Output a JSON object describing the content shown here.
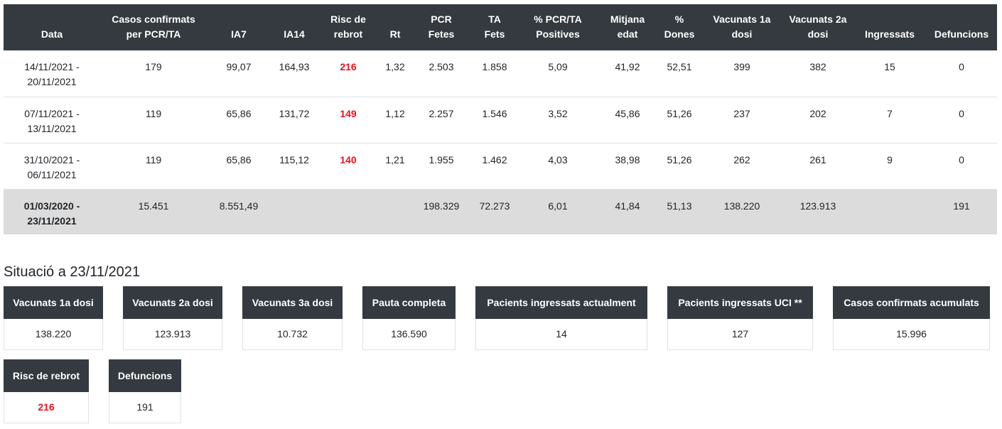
{
  "table": {
    "headers": [
      {
        "line1": "Data",
        "line2": ""
      },
      {
        "line1": "Casos confirmats",
        "line2": "per PCR/TA"
      },
      {
        "line1": "IA7",
        "line2": ""
      },
      {
        "line1": "IA14",
        "line2": ""
      },
      {
        "line1": "Risc de",
        "line2": "rebrot"
      },
      {
        "line1": "Rt",
        "line2": ""
      },
      {
        "line1": "PCR",
        "line2": "Fetes"
      },
      {
        "line1": "TA",
        "line2": "Fets"
      },
      {
        "line1": "% PCR/TA",
        "line2": "Positives"
      },
      {
        "line1": "Mitjana",
        "line2": "edat"
      },
      {
        "line1": "%",
        "line2": "Dones"
      },
      {
        "line1": "Vacunats 1a",
        "line2": "dosi"
      },
      {
        "line1": "Vacunats 2a",
        "line2": "dosi"
      },
      {
        "line1": "Ingressats",
        "line2": ""
      },
      {
        "line1": "Defuncions",
        "line2": ""
      }
    ],
    "rows": [
      {
        "date1": "14/11/2021 -",
        "date2": "20/11/2021",
        "cells": [
          "179",
          "99,07",
          "164,93",
          "216",
          "1,32",
          "2.503",
          "1.858",
          "5,09",
          "41,92",
          "52,51",
          "399",
          "382",
          "15",
          "0"
        ]
      },
      {
        "date1": "07/11/2021 -",
        "date2": "13/11/2021",
        "cells": [
          "119",
          "65,86",
          "131,72",
          "149",
          "1,12",
          "2.257",
          "1.546",
          "3,52",
          "45,86",
          "51,26",
          "237",
          "202",
          "7",
          "0"
        ]
      },
      {
        "date1": "31/10/2021 -",
        "date2": "06/11/2021",
        "cells": [
          "119",
          "65,86",
          "115,12",
          "140",
          "1,21",
          "1.955",
          "1.462",
          "4,03",
          "38,98",
          "51,26",
          "262",
          "261",
          "9",
          "0"
        ]
      }
    ],
    "total": {
      "date1": "01/03/2020 -",
      "date2": "23/11/2021",
      "cells": [
        "15.451",
        "8.551,49",
        "",
        "",
        "",
        "198.329",
        "72.273",
        "6,01",
        "41,84",
        "51,13",
        "138.220",
        "123.913",
        "",
        "191"
      ]
    }
  },
  "situacio": {
    "title": "Situació a 23/11/2021",
    "cards": [
      {
        "label": "Vacunats 1a dosi",
        "value": "138.220"
      },
      {
        "label": "Vacunats 2a dosi",
        "value": "123.913"
      },
      {
        "label": "Vacunats 3a dosi",
        "value": "10.732"
      },
      {
        "label": "Pauta completa",
        "value": "136.590"
      },
      {
        "label": "Pacients ingressats actualment",
        "value": "14"
      },
      {
        "label": "Pacients ingressats UCI **",
        "value": "127"
      },
      {
        "label": "Casos confirmats acumulats",
        "value": "15.996"
      },
      {
        "label": "Risc de rebrot",
        "value": "216"
      },
      {
        "label": "Defuncions",
        "value": "191"
      }
    ]
  },
  "colors": {
    "header_bg": "#343a40",
    "risk_red": "#e8141d",
    "total_row_bg": "#dcdcdc"
  }
}
